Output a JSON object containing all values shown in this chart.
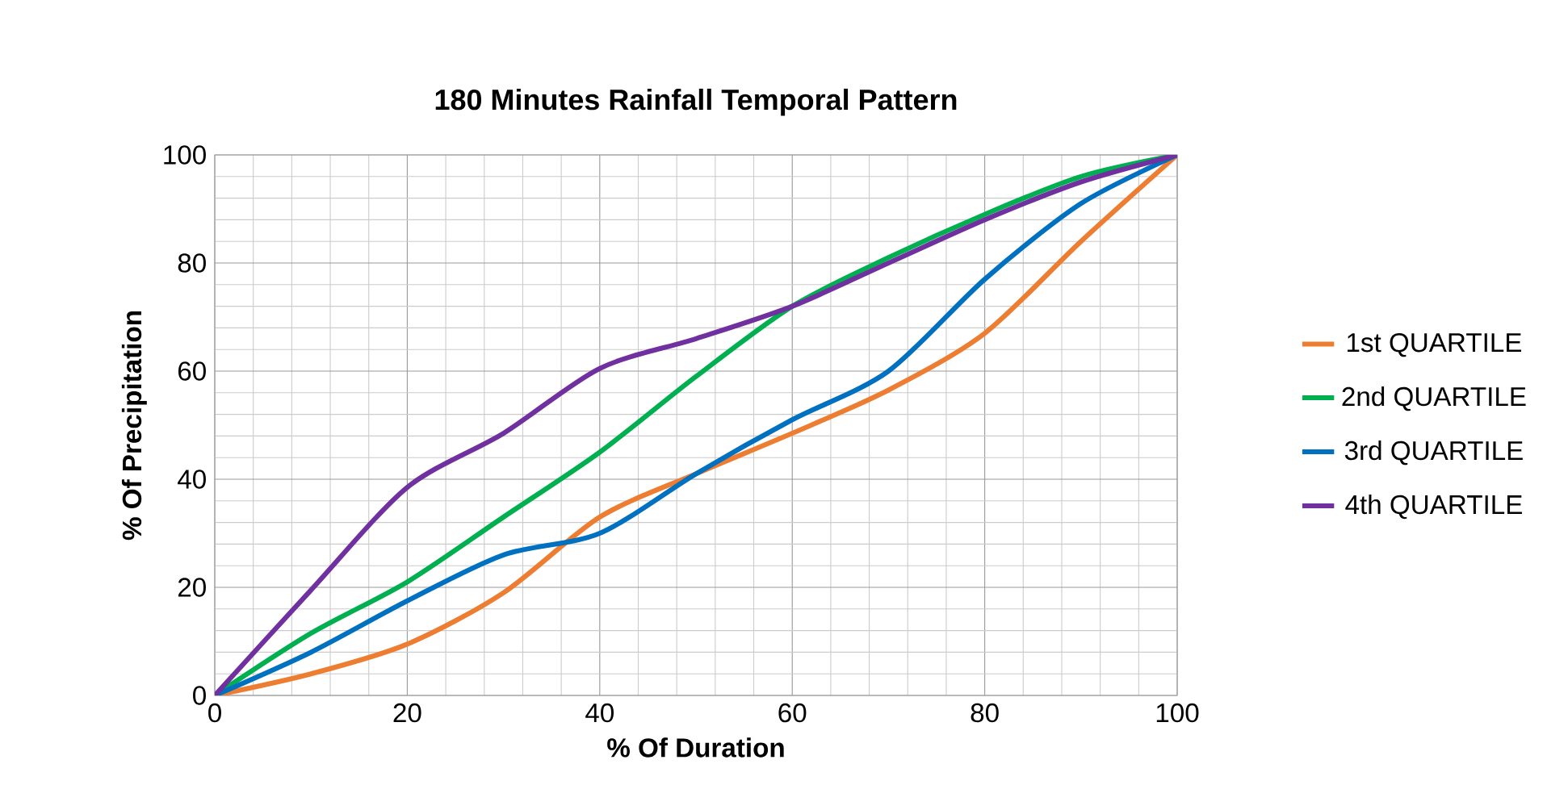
{
  "chart_data": {
    "type": "line",
    "title": "180 Minutes Rainfall Temporal Pattern",
    "xlabel": "% Of Duration",
    "ylabel": "% Of Precipitation",
    "x": [
      0,
      10,
      20,
      30,
      40,
      50,
      60,
      70,
      80,
      90,
      100
    ],
    "series": [
      {
        "name": "1st QUARTILE",
        "color": "#ed7d31",
        "values": [
          0,
          4,
          9.5,
          19,
          33,
          41,
          48.5,
          56.5,
          67,
          84,
          100
        ]
      },
      {
        "name": "2nd QUARTILE",
        "color": "#00b050",
        "values": [
          0,
          11.5,
          21,
          33,
          45,
          59,
          72,
          81,
          89,
          96,
          100
        ]
      },
      {
        "name": "3rd QUARTILE",
        "color": "#0070c0",
        "values": [
          0,
          8,
          17.5,
          26,
          30,
          41,
          51,
          60,
          77,
          91,
          100
        ]
      },
      {
        "name": "4th QUARTILE",
        "color": "#7030a0",
        "values": [
          0,
          19.5,
          38.5,
          48.5,
          60.5,
          66,
          72,
          80,
          88,
          95,
          100
        ]
      }
    ],
    "xlim": [
      0,
      100
    ],
    "ylim": [
      0,
      100
    ],
    "xticks": [
      0,
      20,
      40,
      60,
      80,
      100
    ],
    "yticks": [
      0,
      20,
      40,
      60,
      80,
      100
    ],
    "grid": true,
    "legend": "right",
    "marker": "none",
    "line_style": "solid"
  }
}
